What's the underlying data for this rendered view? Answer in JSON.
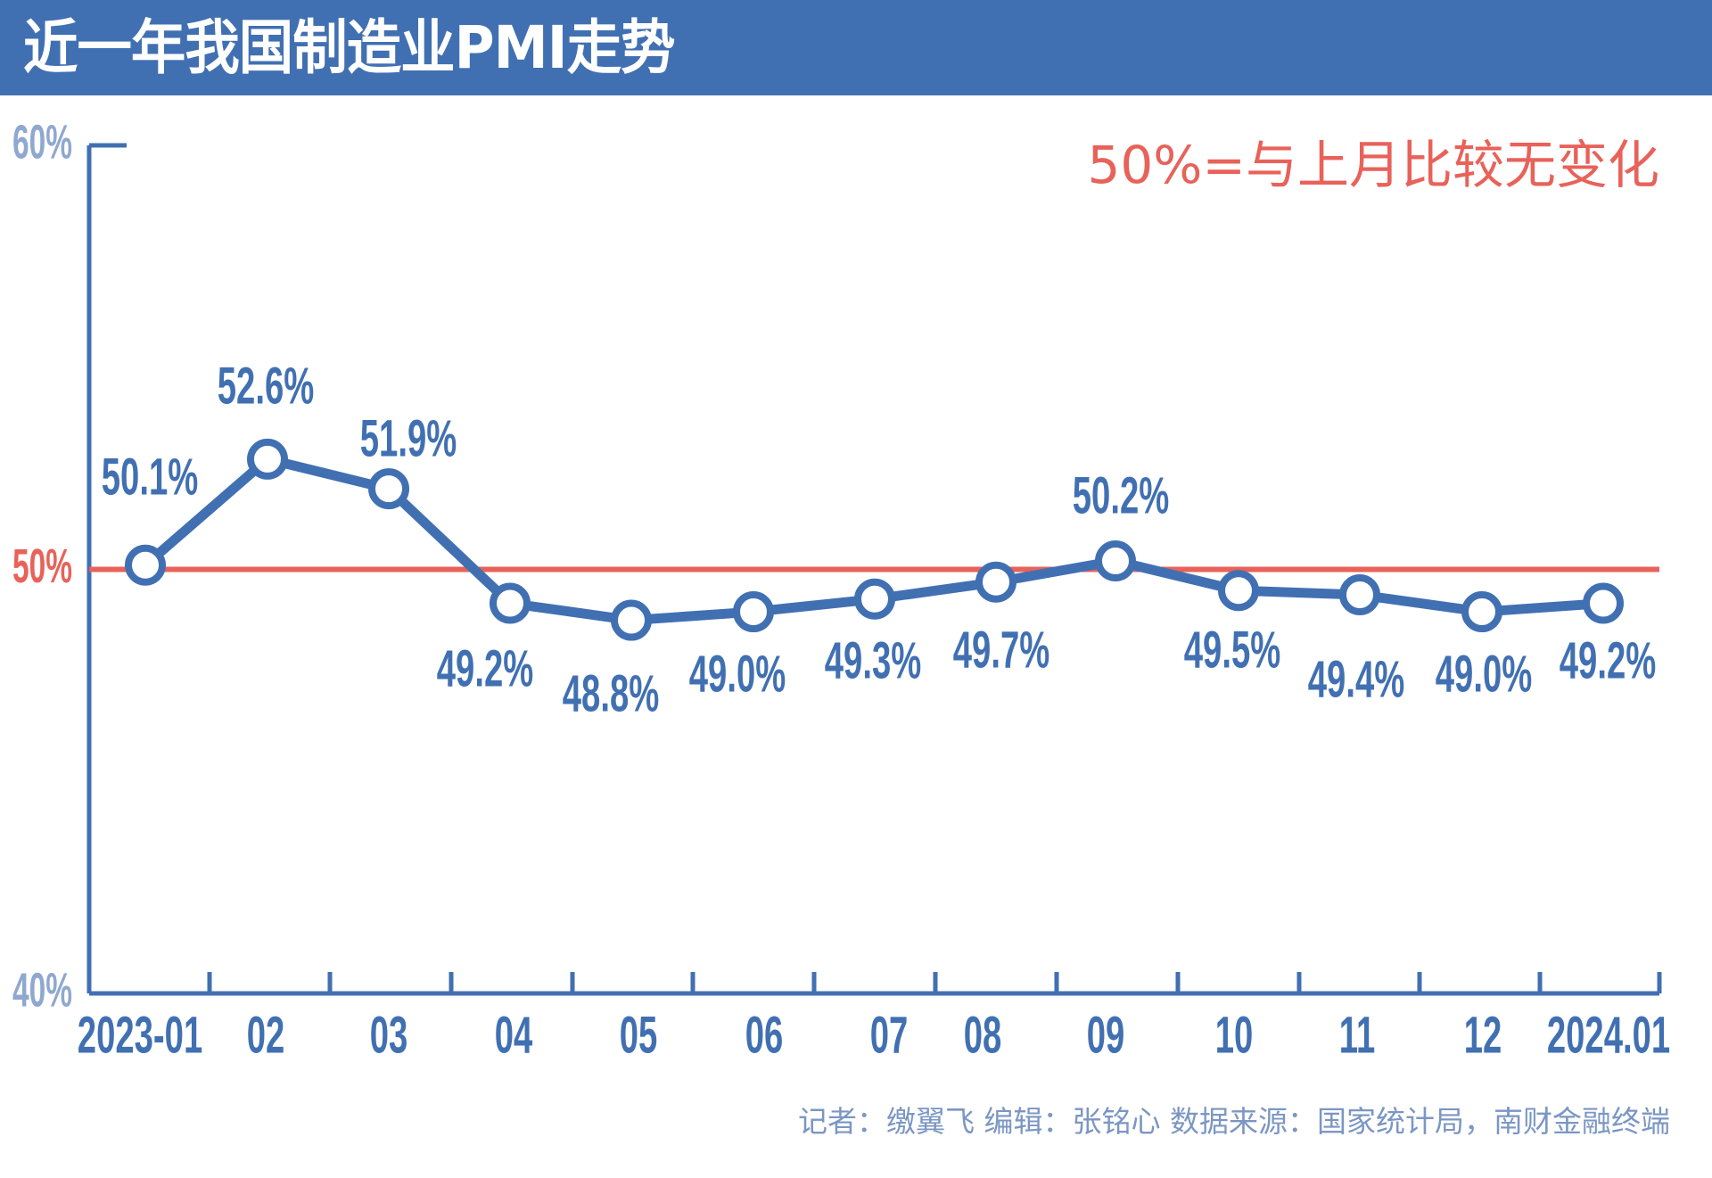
{
  "chart_data": {
    "type": "line",
    "title": "近一年我国制造业PMI走势",
    "annotation": "50%=与上月比较无变化",
    "categories": [
      "2023-01",
      "02",
      "03",
      "04",
      "05",
      "06",
      "07",
      "08",
      "09",
      "10",
      "11",
      "12",
      "2024.01"
    ],
    "values": [
      50.1,
      52.6,
      51.9,
      49.2,
      48.8,
      49.0,
      49.3,
      49.7,
      50.2,
      49.5,
      49.4,
      49.0,
      49.2
    ],
    "data_labels": [
      "50.1%",
      "52.6%",
      "51.9%",
      "49.2%",
      "48.8%",
      "49.0%",
      "49.3%",
      "49.7%",
      "50.2%",
      "49.5%",
      "49.4%",
      "49.0%",
      "49.2%"
    ],
    "y_ticks": [
      {
        "value": 60,
        "label": "60%"
      },
      {
        "value": 50,
        "label": "50%"
      },
      {
        "value": 40,
        "label": "40%"
      }
    ],
    "ylim": [
      40,
      60
    ],
    "reference_line": {
      "value": 50,
      "color": "#e8625a"
    },
    "xlabel": "",
    "ylabel": "",
    "grid": false,
    "colors": {
      "line": "#4170b2",
      "reference": "#e8625a",
      "axis_label": "#8fa8cf",
      "title_bg": "#4170b2"
    }
  },
  "footer": "记者：缴翼飞  编辑：张铭心   数据来源：国家统计局，南财金融终端"
}
